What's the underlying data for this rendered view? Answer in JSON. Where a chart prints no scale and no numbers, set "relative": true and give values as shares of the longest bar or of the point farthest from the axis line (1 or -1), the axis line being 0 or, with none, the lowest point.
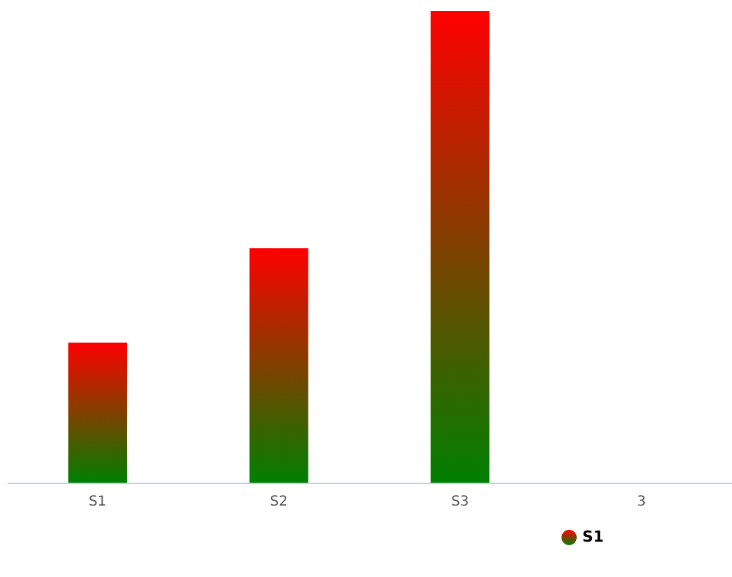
{
  "chart_data": {
    "type": "bar",
    "relative": true,
    "categories": [
      "S1",
      "S2",
      "S3",
      "3"
    ],
    "series": [
      {
        "name": "S1",
        "color": "#ff0000",
        "values": [
          0.297,
          0.497,
          1,
          null
        ]
      }
    ],
    "legend": "bottom",
    "grid": false
  }
}
